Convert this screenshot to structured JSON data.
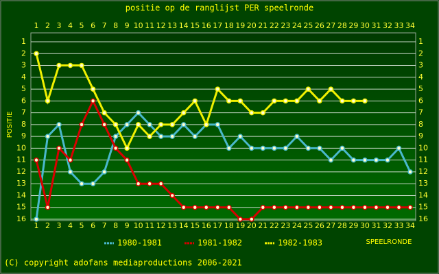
{
  "chart_data": {
    "type": "line",
    "title": "positie op de ranglijst PER speelronde",
    "y_label": "POSITIE",
    "x_label": "SPEELRONDE",
    "footer": "(C) copyright adofans mediaproductions 2006-2021",
    "x": [
      1,
      2,
      3,
      4,
      5,
      6,
      7,
      8,
      9,
      10,
      11,
      12,
      13,
      14,
      15,
      16,
      17,
      18,
      19,
      20,
      21,
      22,
      23,
      24,
      25,
      26,
      27,
      28,
      29,
      30,
      31,
      32,
      33,
      34
    ],
    "xlim": [
      1,
      34
    ],
    "xticks": [
      1,
      2,
      3,
      4,
      5,
      6,
      7,
      8,
      9,
      10,
      11,
      12,
      13,
      14,
      15,
      16,
      17,
      18,
      19,
      20,
      21,
      22,
      23,
      24,
      25,
      26,
      27,
      28,
      29,
      30,
      31,
      32,
      33,
      34
    ],
    "ylim": [
      16,
      1
    ],
    "yticks": [
      1,
      2,
      3,
      4,
      5,
      6,
      7,
      8,
      9,
      10,
      11,
      12,
      13,
      14,
      15,
      16
    ],
    "grid": true,
    "series": [
      {
        "name": "1980-1981",
        "color": "#4ab8cc",
        "values": [
          16,
          9,
          8,
          12,
          13,
          13,
          12,
          9,
          8,
          7,
          8,
          9,
          9,
          8,
          9,
          8,
          8,
          10,
          9,
          10,
          10,
          10,
          10,
          9,
          10,
          10,
          11,
          10,
          11,
          11,
          11,
          11,
          10,
          12
        ]
      },
      {
        "name": "1981-1982",
        "color": "#d80000",
        "values": [
          11,
          15,
          10,
          11,
          8,
          6,
          8,
          10,
          11,
          13,
          13,
          13,
          14,
          15,
          15,
          15,
          15,
          15,
          16,
          16,
          15,
          15,
          15,
          15,
          15,
          15,
          15,
          15,
          15,
          15,
          15,
          15,
          15,
          15
        ]
      },
      {
        "name": "1982-1983",
        "color": "#f0f000",
        "values": [
          2,
          6,
          3,
          3,
          3,
          5,
          7,
          8,
          10,
          8,
          9,
          8,
          8,
          7,
          6,
          8,
          5,
          6,
          6,
          7,
          7,
          6,
          6,
          6,
          5,
          6,
          5,
          6,
          6,
          6,
          null,
          null,
          null,
          null
        ]
      }
    ]
  }
}
